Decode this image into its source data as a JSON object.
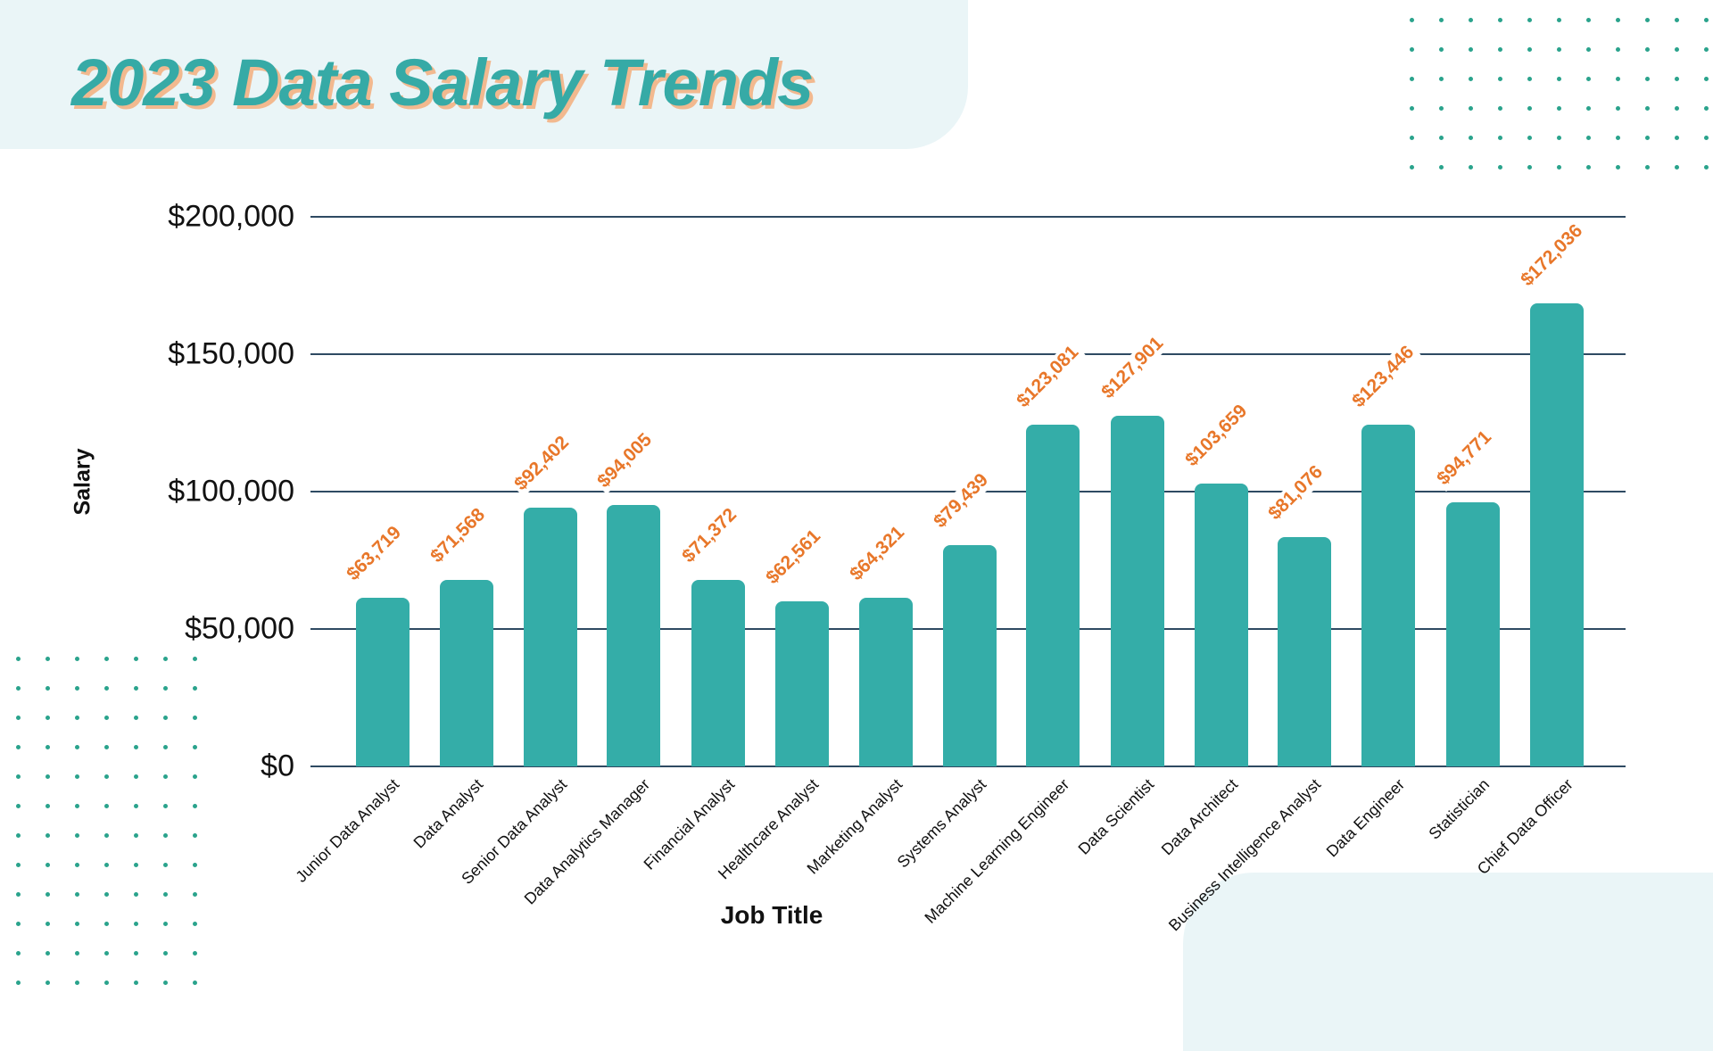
{
  "header": {
    "title": "2023 Data Salary Trends"
  },
  "colors": {
    "bar": "#34ada8",
    "value_label": "#e8772a",
    "title": "#36aaa6",
    "title_shadow": "#f2b98f",
    "gridline": "#2e4a62",
    "panel": "#eaf5f7",
    "dots": "#2aa38c"
  },
  "axes": {
    "ylabel": "Salary",
    "xlabel": "Job Title",
    "yticks": [
      "$0",
      "$50,000",
      "$100,000",
      "$150,000",
      "$200,000"
    ]
  },
  "bars": [
    {
      "category": "Junior Data Analyst",
      "label": "$63,719"
    },
    {
      "category": "Data Analyst",
      "label": "$71,568"
    },
    {
      "category": "Senior Data Analyst",
      "label": "$92,402"
    },
    {
      "category": "Data Analytics Manager",
      "label": "$94,005"
    },
    {
      "category": "Financial Analyst",
      "label": "$71,372"
    },
    {
      "category": "Healthcare Analyst",
      "label": "$62,561"
    },
    {
      "category": "Marketing Analyst",
      "label": "$64,321"
    },
    {
      "category": "Systems Analyst",
      "label": "$79,439"
    },
    {
      "category": "Machine Learning Engineer",
      "label": "$123,081"
    },
    {
      "category": "Data Scientist",
      "label": "$127,901"
    },
    {
      "category": "Data Architect",
      "label": "$103,659"
    },
    {
      "category": "Business Intelligence Analyst",
      "label": "$81,076"
    },
    {
      "category": "Data Engineer",
      "label": "$123,446"
    },
    {
      "category": "Statistician",
      "label": "$94,771"
    },
    {
      "category": "Chief Data Officer",
      "label": "$172,036"
    }
  ],
  "chart_data": {
    "type": "bar",
    "title": "2023 Data Salary Trends",
    "xlabel": "Job Title",
    "ylabel": "Salary",
    "ylim": [
      0,
      200000
    ],
    "yticks": [
      0,
      50000,
      100000,
      150000,
      200000
    ],
    "grid": true,
    "legend": null,
    "categories": [
      "Junior Data Analyst",
      "Data Analyst",
      "Senior Data Analyst",
      "Data Analytics Manager",
      "Financial Analyst",
      "Healthcare Analyst",
      "Marketing Analyst",
      "Systems Analyst",
      "Machine Learning Engineer",
      "Data Scientist",
      "Data Architect",
      "Business Intelligence Analyst",
      "Data Engineer",
      "Statistician",
      "Chief Data Officer"
    ],
    "values": [
      63719,
      71568,
      92402,
      94005,
      71372,
      62561,
      64321,
      79439,
      123081,
      127901,
      103659,
      81076,
      123446,
      94771,
      172036
    ],
    "drawn_bar_heights_approx": [
      61500,
      68000,
      94000,
      95000,
      68000,
      60000,
      61500,
      80500,
      124500,
      127500,
      103000,
      83500,
      124500,
      96000,
      168500
    ]
  }
}
